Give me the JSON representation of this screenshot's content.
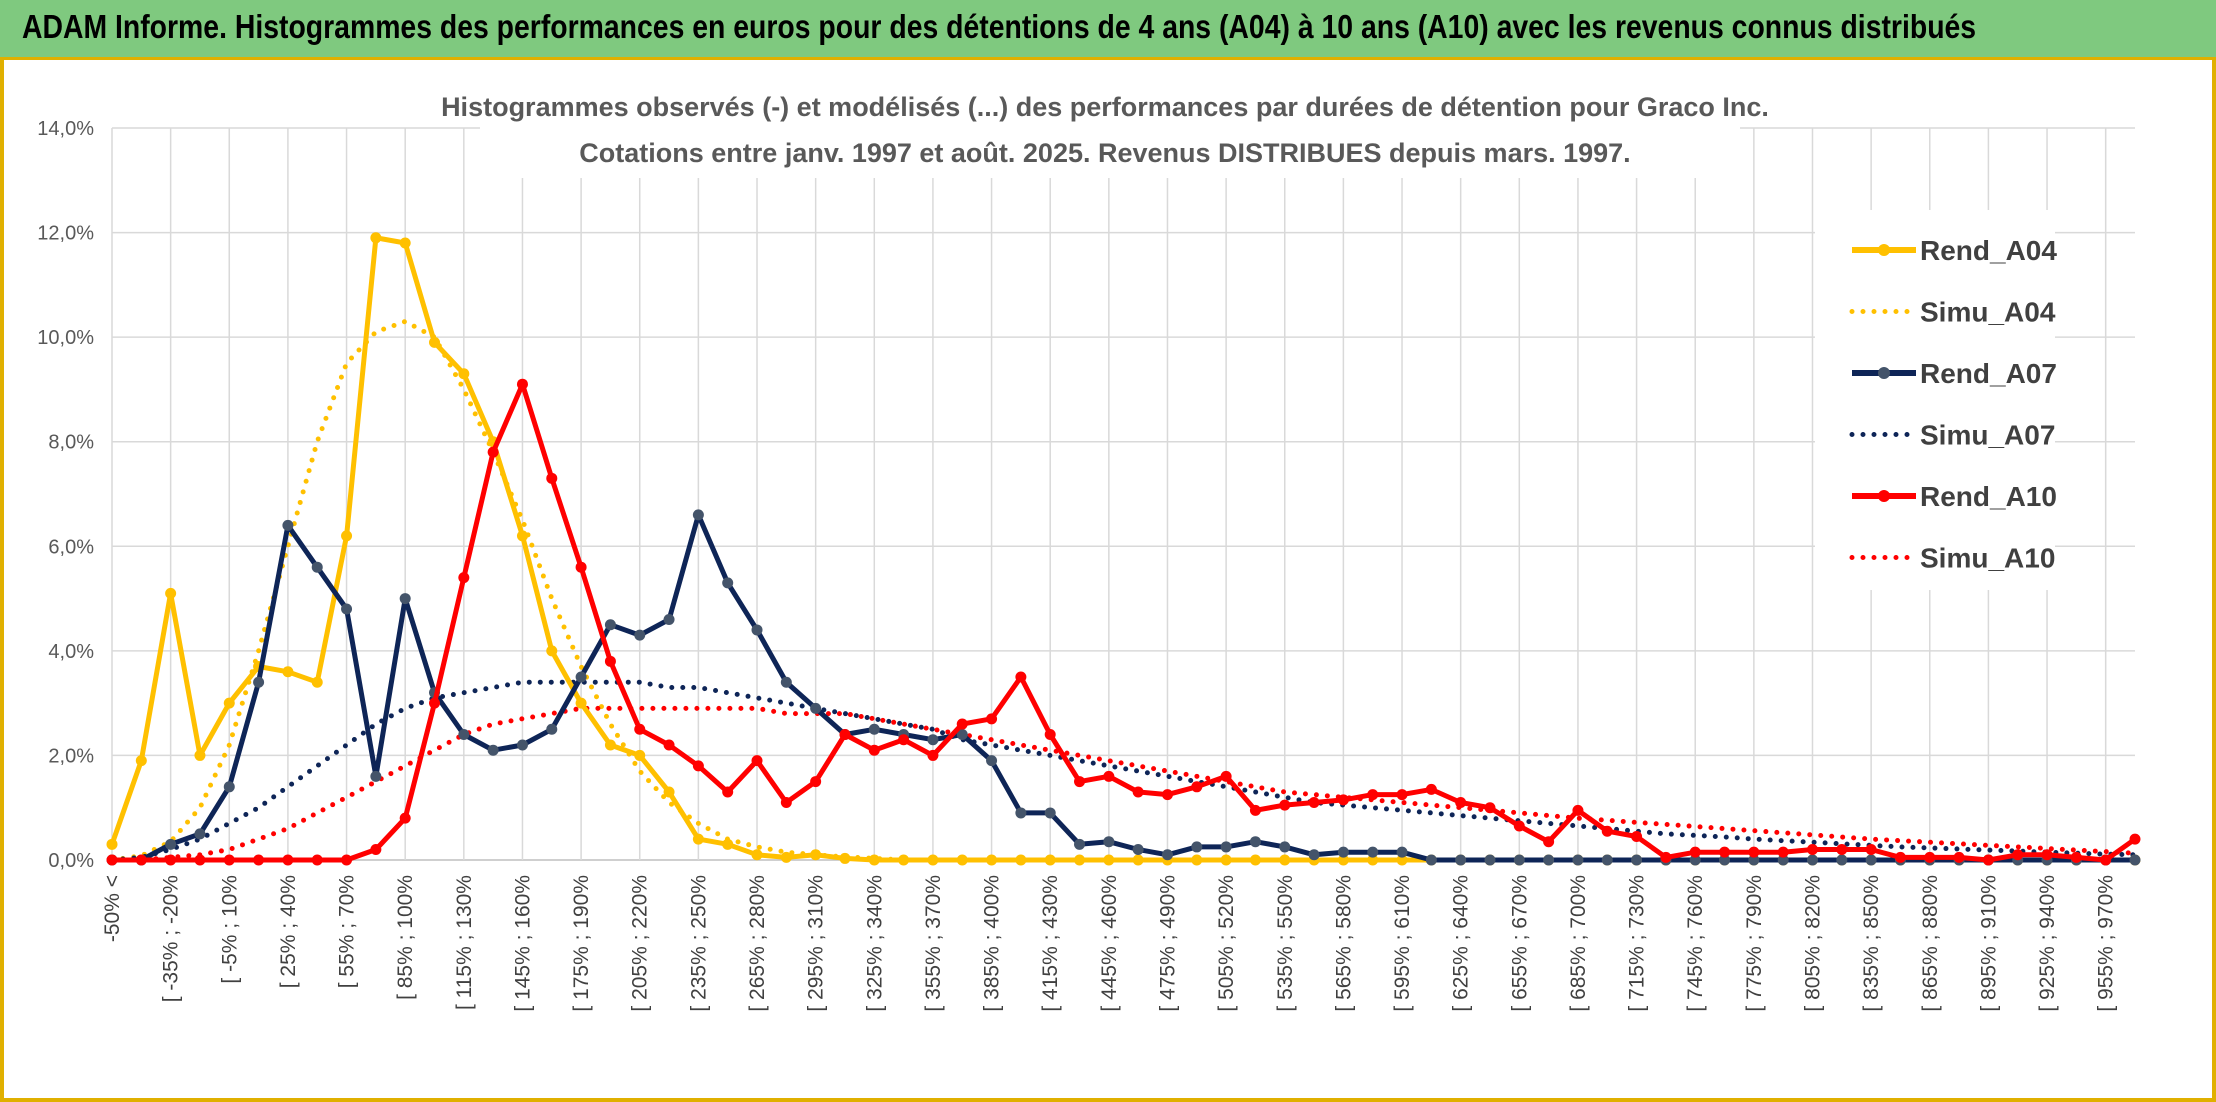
{
  "header": {
    "title": "ADAM Informe. Histogrammes des performances en euros pour des détentions de 4 ans (A04) à 10 ans (A10) avec les revenus connus distribués"
  },
  "colors": {
    "banner": "#7fc97f",
    "accent_border": "#e0b000",
    "A04": "#FFC000",
    "A07": "#0E2557",
    "A10": "#FF0000",
    "grid": "#D9D9D9"
  },
  "chart_data": {
    "type": "line",
    "title": [
      "Histogrammes observés (-) et modélisés (...) des performances par durées de détention pour Graco Inc.",
      "Cotations entre janv. 1997 et août. 2025. Revenus DISTRIBUES depuis mars. 1997."
    ],
    "xlabel": "",
    "ylabel": "",
    "ylim": [
      0,
      0.14
    ],
    "yticks": [
      "0,0%",
      "2,0%",
      "4,0%",
      "6,0%",
      "8,0%",
      "10,0%",
      "12,0%",
      "14,0%"
    ],
    "grid": true,
    "legend_position": "right",
    "x_tick_labels": [
      "-50% <",
      "[ -35% ; -20%",
      "[ -5% ; 10%",
      "[ 25% ; 40%",
      "[ 55% ; 70%",
      "[ 85% ; 100%",
      "[ 115% ; 130%",
      "[ 145% ; 160%",
      "[ 175% ; 190%",
      "[ 205% ; 220%",
      "[ 235% ; 250%",
      "[ 265% ; 280%",
      "[ 295% ; 310%",
      "[ 325% ; 340%",
      "[ 355% ; 370%",
      "[ 385% ; 400%",
      "[ 415% ; 430%",
      "[ 445% ; 460%",
      "[ 475% ; 490%",
      "[ 505% ; 520%",
      "[ 535% ; 550%",
      "[ 565% ; 580%",
      "[ 595% ; 610%",
      "[ 625% ; 640%",
      "[ 655% ; 670%",
      "[ 685% ; 700%",
      "[ 715% ; 730%",
      "[ 745% ; 760%",
      "[ 775% ; 790%",
      "[ 805% ; 820%",
      "[ 835% ; 850%",
      "[ 865% ; 880%",
      "[ 895% ; 910%",
      "[ 925% ; 940%",
      "[ 955% ; 970%"
    ],
    "series": [
      {
        "name": "Rend_A04",
        "style": "solid-markers",
        "color": "#FFC000",
        "values": [
          0.003,
          0.019,
          0.051,
          0.02,
          0.03,
          0.037,
          0.036,
          0.034,
          0.062,
          0.119,
          0.118,
          0.099,
          0.093,
          0.08,
          0.062,
          0.04,
          0.03,
          0.022,
          0.02,
          0.013,
          0.004,
          0.003,
          0.001,
          0.0005,
          0.001,
          0.0003,
          0,
          0,
          0,
          0,
          0,
          0,
          0,
          0,
          0,
          0,
          0,
          0,
          0,
          0,
          0,
          0,
          0,
          0,
          0,
          0,
          0,
          0,
          0,
          0,
          0,
          0,
          0,
          0,
          0,
          0,
          0,
          0,
          0,
          0,
          0,
          0,
          0,
          0,
          0,
          0,
          0,
          0,
          0,
          0
        ]
      },
      {
        "name": "Simu_A04",
        "style": "dotted",
        "color": "#FFC000",
        "values": [
          0,
          0.0008,
          0.0035,
          0.01,
          0.022,
          0.04,
          0.06,
          0.08,
          0.095,
          0.101,
          0.103,
          0.1,
          0.09,
          0.078,
          0.065,
          0.05,
          0.037,
          0.026,
          0.017,
          0.011,
          0.007,
          0.004,
          0.0025,
          0.0015,
          0.001,
          0.0006,
          0.0003,
          0,
          0,
          0,
          0,
          0,
          0,
          0,
          0,
          0,
          0,
          0,
          0,
          0,
          0,
          0,
          0,
          0,
          0,
          0,
          0,
          0,
          0,
          0,
          0,
          0,
          0,
          0,
          0,
          0,
          0,
          0,
          0,
          0,
          0,
          0,
          0,
          0,
          0,
          0,
          0,
          0,
          0,
          0
        ]
      },
      {
        "name": "Rend_A07",
        "style": "solid-markers",
        "color": "#0E2557",
        "values": [
          0,
          0,
          0.003,
          0.005,
          0.014,
          0.034,
          0.064,
          0.056,
          0.048,
          0.016,
          0.05,
          0.032,
          0.024,
          0.021,
          0.022,
          0.025,
          0.035,
          0.045,
          0.043,
          0.046,
          0.066,
          0.053,
          0.044,
          0.034,
          0.029,
          0.024,
          0.025,
          0.024,
          0.023,
          0.024,
          0.019,
          0.009,
          0.009,
          0.003,
          0.0035,
          0.002,
          0.001,
          0.0025,
          0.0025,
          0.0035,
          0.0025,
          0.001,
          0.0015,
          0.0015,
          0.0015,
          0,
          0,
          0,
          0,
          0,
          0,
          0,
          0,
          0,
          0,
          0,
          0,
          0,
          0,
          0,
          0,
          0,
          0,
          0,
          0,
          0,
          0,
          0,
          0,
          0
        ]
      },
      {
        "name": "Simu_A07",
        "style": "dotted",
        "color": "#0E2557",
        "values": [
          0,
          0.0005,
          0.002,
          0.004,
          0.007,
          0.01,
          0.014,
          0.018,
          0.022,
          0.026,
          0.029,
          0.031,
          0.032,
          0.033,
          0.034,
          0.034,
          0.034,
          0.034,
          0.034,
          0.033,
          0.033,
          0.032,
          0.031,
          0.03,
          0.029,
          0.028,
          0.027,
          0.026,
          0.025,
          0.023,
          0.022,
          0.021,
          0.02,
          0.019,
          0.018,
          0.017,
          0.016,
          0.015,
          0.014,
          0.013,
          0.012,
          0.011,
          0.0105,
          0.01,
          0.0095,
          0.009,
          0.0085,
          0.008,
          0.0075,
          0.007,
          0.0065,
          0.006,
          0.0055,
          0.005,
          0.0047,
          0.0044,
          0.004,
          0.0037,
          0.0034,
          0.0031,
          0.0028,
          0.0025,
          0.0023,
          0.0021,
          0.0019,
          0.0017,
          0.0015,
          0.0013,
          0.0011,
          0.001
        ]
      },
      {
        "name": "Rend_A10",
        "style": "solid-markers",
        "color": "#FF0000",
        "values": [
          0,
          0,
          0,
          0,
          0,
          0,
          0,
          0,
          0,
          0.002,
          0.008,
          0.03,
          0.054,
          0.078,
          0.091,
          0.073,
          0.056,
          0.038,
          0.025,
          0.022,
          0.018,
          0.013,
          0.019,
          0.011,
          0.015,
          0.024,
          0.021,
          0.023,
          0.02,
          0.026,
          0.027,
          0.035,
          0.024,
          0.015,
          0.016,
          0.013,
          0.0125,
          0.014,
          0.016,
          0.0095,
          0.0105,
          0.011,
          0.0115,
          0.0125,
          0.0125,
          0.0135,
          0.011,
          0.01,
          0.0065,
          0.0035,
          0.0095,
          0.0055,
          0.0045,
          0.0005,
          0.0015,
          0.0015,
          0.0015,
          0.0015,
          0.002,
          0.002,
          0.002,
          0.0005,
          0.0005,
          0.0005,
          0,
          0.001,
          0.001,
          0.0005,
          0,
          0.004
        ]
      },
      {
        "name": "Simu_A10",
        "style": "dotted",
        "color": "#FF0000",
        "values": [
          0,
          0,
          0.0005,
          0.001,
          0.002,
          0.004,
          0.006,
          0.009,
          0.012,
          0.015,
          0.018,
          0.021,
          0.024,
          0.026,
          0.027,
          0.028,
          0.029,
          0.029,
          0.029,
          0.029,
          0.029,
          0.029,
          0.029,
          0.028,
          0.028,
          0.028,
          0.027,
          0.026,
          0.025,
          0.024,
          0.023,
          0.022,
          0.021,
          0.02,
          0.019,
          0.018,
          0.017,
          0.016,
          0.015,
          0.014,
          0.013,
          0.0125,
          0.012,
          0.0115,
          0.011,
          0.0105,
          0.01,
          0.0095,
          0.009,
          0.0085,
          0.008,
          0.0076,
          0.0072,
          0.0068,
          0.0064,
          0.006,
          0.0056,
          0.0052,
          0.0048,
          0.0044,
          0.004,
          0.0037,
          0.0034,
          0.0031,
          0.0028,
          0.0025,
          0.0022,
          0.0019,
          0.0016,
          0.0013
        ]
      }
    ]
  }
}
